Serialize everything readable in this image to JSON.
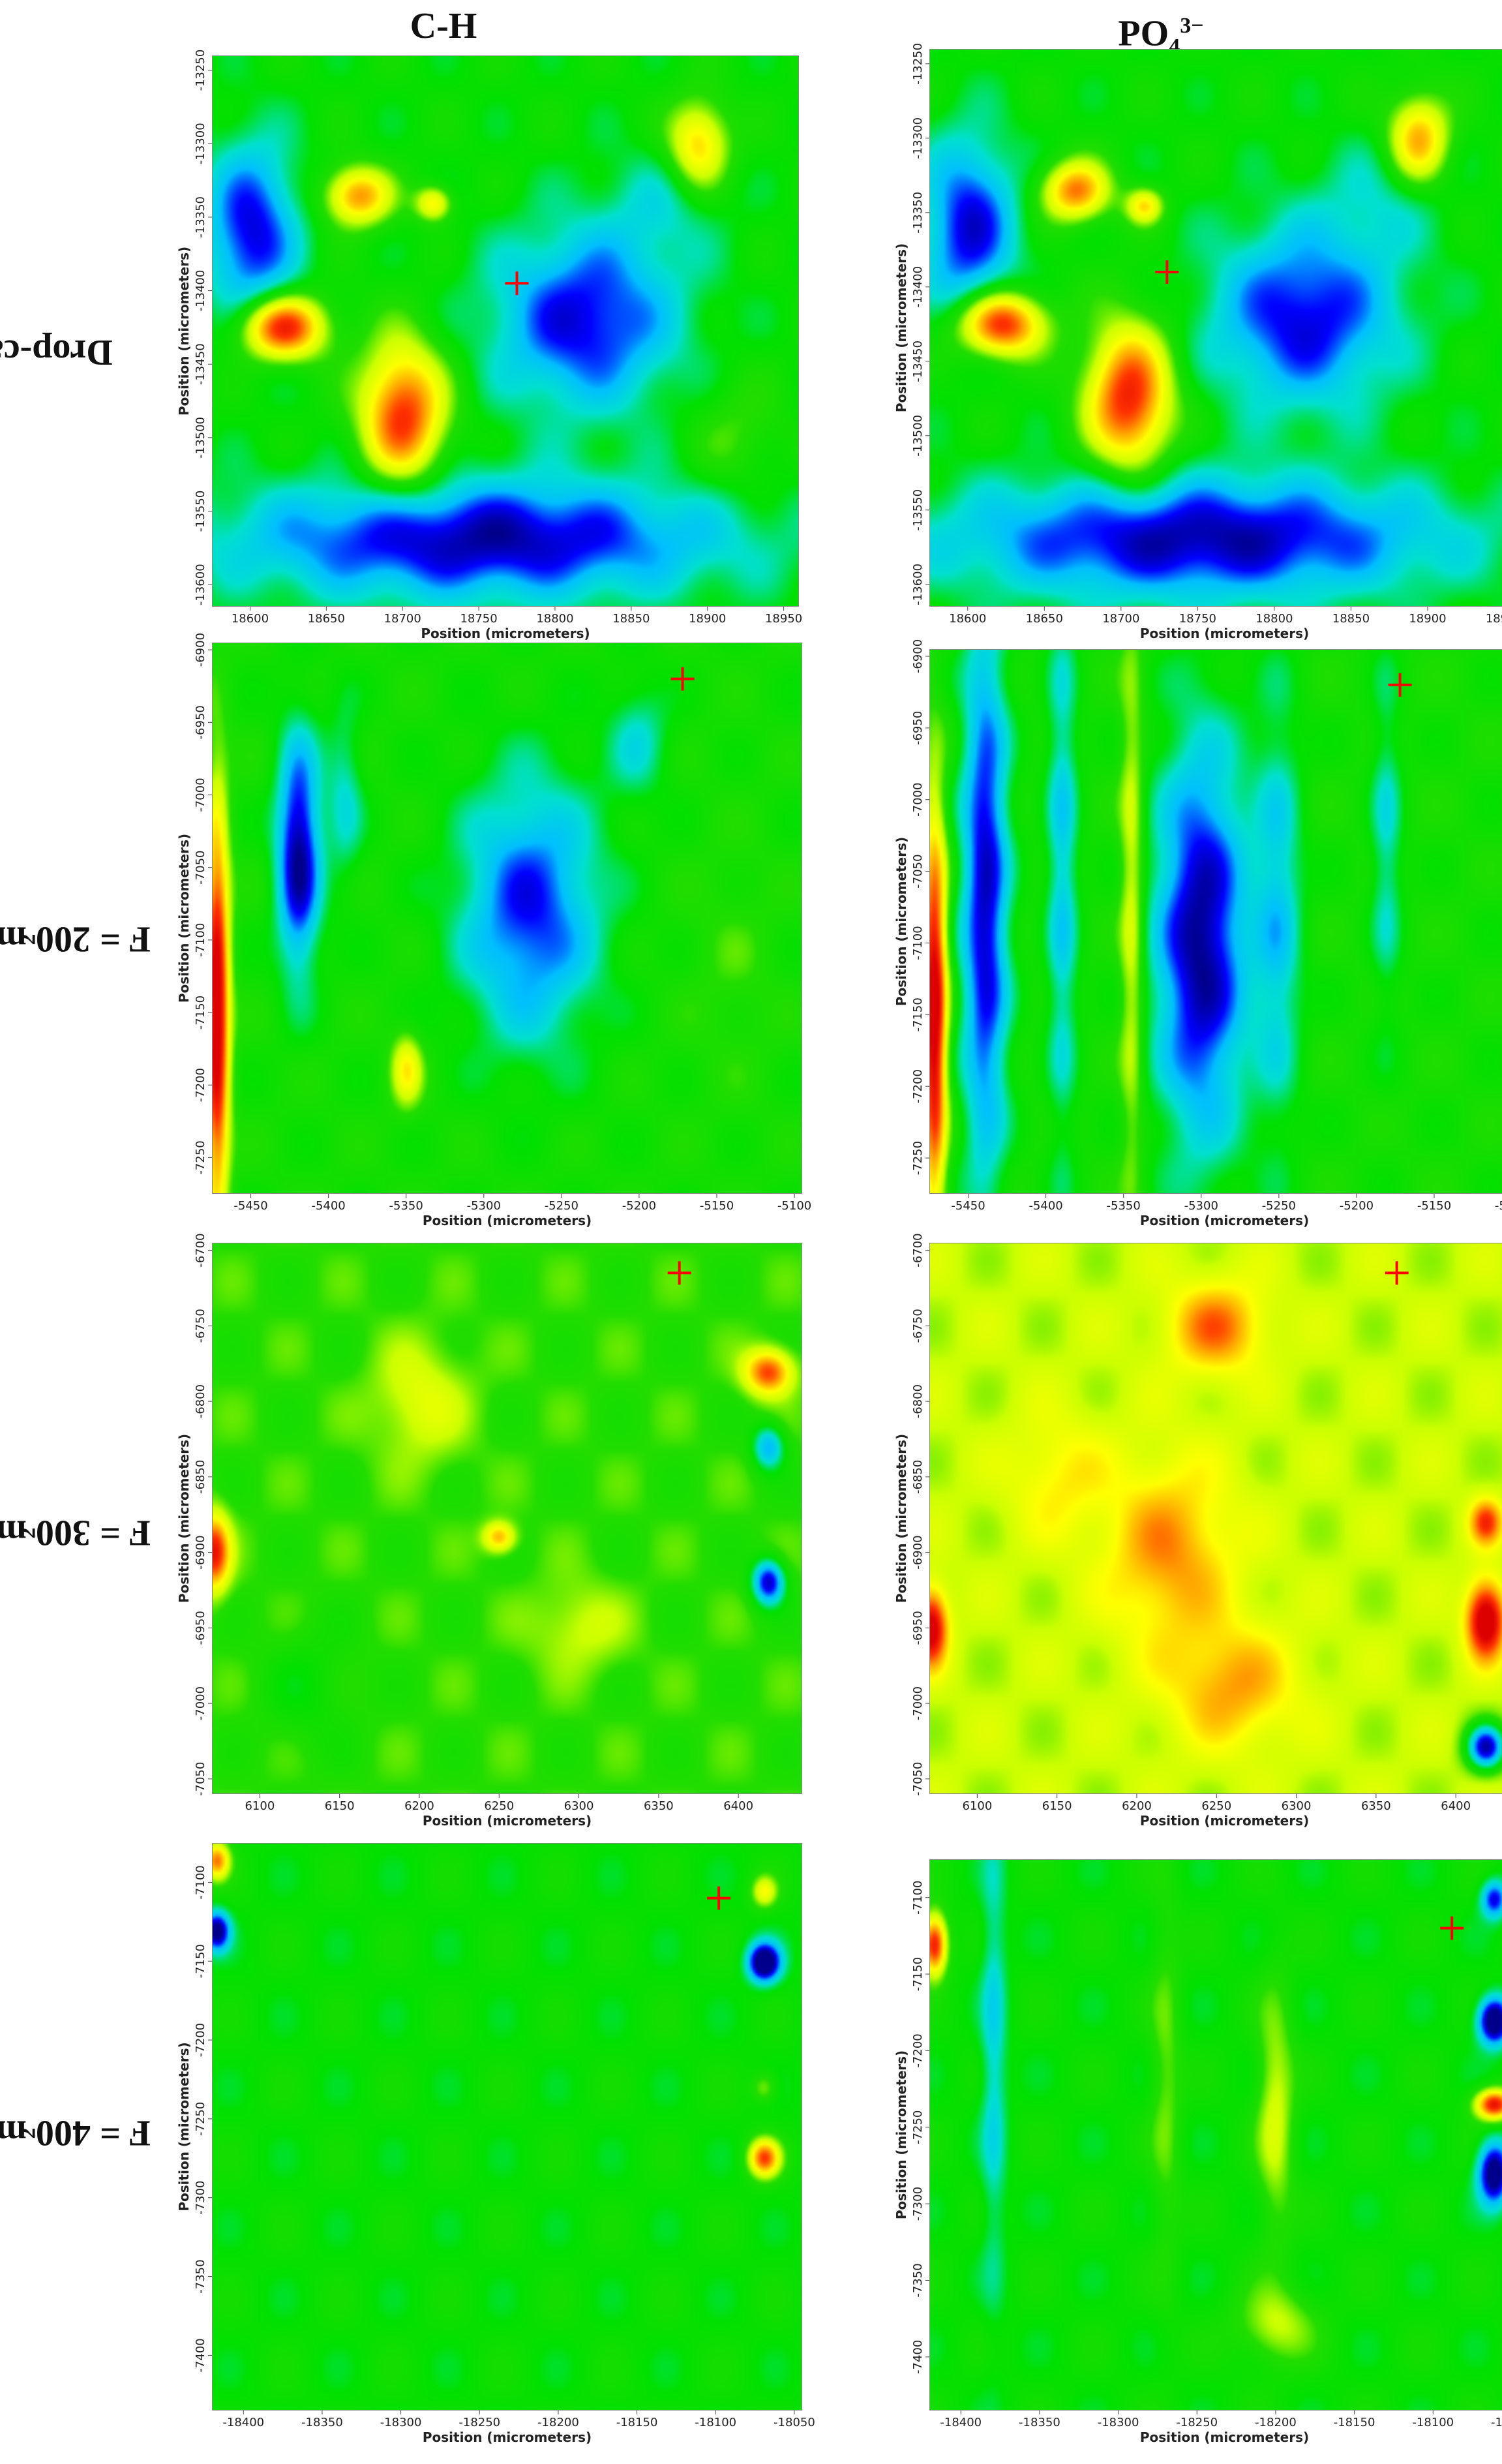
{
  "columns": [
    {
      "label": "C-H",
      "sup": "",
      "sub": ""
    },
    {
      "label": "PO",
      "sub": "4",
      "sup": "3−"
    }
  ],
  "rows": [
    {
      "label": "Drop-cast"
    },
    {
      "label_main": "F = 200 mJ/cm",
      "label_sup": "2"
    },
    {
      "label_main": "F = 300 mJ/cm",
      "label_sup": "2"
    },
    {
      "label_main": "F = 400 mJ/cm",
      "label_sup": "2"
    }
  ],
  "colors": {
    "colormap": [
      "#00008b",
      "#0000ff",
      "#00bfff",
      "#00e0d0",
      "#00e000",
      "#22dd00",
      "#ccff00",
      "#ffff00",
      "#ffa500",
      "#ff3300",
      "#dd0000"
    ],
    "marker": "#ff0000"
  },
  "chart_data": [
    {
      "type": "heatmap",
      "row": "Drop-cast",
      "column": "C-H",
      "xlabel": "Position (micrometers)",
      "ylabel": "Position (micrometers)",
      "xlim": [
        18575,
        18960
      ],
      "ylim": [
        -13615,
        -13240
      ],
      "xticks": [
        "18600",
        "18650",
        "18700",
        "18750",
        "18800",
        "18850",
        "18900",
        "18950"
      ],
      "yticks": [
        "-13250",
        "-13300",
        "-13350",
        "-13400",
        "-13450",
        "-13500",
        "-13550",
        "-13600"
      ],
      "background": 0.42,
      "marker": [
        18775,
        -13395
      ],
      "blobs": [
        [
          18620,
          -13425,
          28,
          22,
          0.55
        ],
        [
          18700,
          -13485,
          28,
          50,
          0.5
        ],
        [
          18670,
          -13335,
          22,
          20,
          0.4
        ],
        [
          18720,
          -13340,
          12,
          12,
          0.3
        ],
        [
          18895,
          -13300,
          20,
          30,
          0.35
        ],
        [
          18750,
          -13570,
          160,
          40,
          -0.4
        ],
        [
          18600,
          -13360,
          30,
          60,
          -0.35
        ],
        [
          18820,
          -13420,
          60,
          60,
          -0.35
        ],
        [
          18920,
          -13500,
          30,
          40,
          0.1
        ],
        [
          18870,
          -13340,
          40,
          40,
          -0.1
        ]
      ]
    },
    {
      "type": "heatmap",
      "row": "Drop-cast",
      "column": "PO4 3-",
      "xlabel": "Position (micrometers)",
      "ylabel": "Position (micrometers)",
      "xlim": [
        18575,
        18960
      ],
      "ylim": [
        -13615,
        -13240
      ],
      "xticks": [
        "18600",
        "18650",
        "18700",
        "18750",
        "18800",
        "18850",
        "18900",
        "18950"
      ],
      "yticks": [
        "-13250",
        "-13300",
        "-13350",
        "-13400",
        "-13450",
        "-13500",
        "-13550",
        "-13600"
      ],
      "background": 0.42,
      "marker": [
        18730,
        -13390
      ],
      "blobs": [
        [
          18620,
          -13425,
          28,
          22,
          0.55
        ],
        [
          18705,
          -13475,
          28,
          50,
          0.52
        ],
        [
          18670,
          -13335,
          22,
          20,
          0.42
        ],
        [
          18715,
          -13345,
          12,
          12,
          0.3
        ],
        [
          18895,
          -13300,
          20,
          30,
          0.38
        ],
        [
          18750,
          -13570,
          160,
          40,
          -0.4
        ],
        [
          18600,
          -13360,
          30,
          60,
          -0.35
        ],
        [
          18820,
          -13420,
          60,
          60,
          -0.35
        ],
        [
          18870,
          -13340,
          40,
          40,
          -0.1
        ]
      ]
    },
    {
      "type": "heatmap",
      "row": "F = 200 mJ/cm2",
      "column": "C-H",
      "xlabel": "Position (micrometers)",
      "ylabel": "Position (micrometers)",
      "xlim": [
        -5475,
        -5095
      ],
      "ylim": [
        -7275,
        -6895
      ],
      "xticks": [
        "-5450",
        "-5400",
        "-5350",
        "-5300",
        "-5250",
        "-5200",
        "-5150",
        "-5100"
      ],
      "yticks": [
        "-6900",
        "-6950",
        "-7000",
        "-7050",
        "-7100",
        "-7150",
        "-7200",
        "-7250"
      ],
      "background": 0.45,
      "marker": [
        -5172,
        -6920
      ],
      "blobs": [
        [
          -5473,
          -7150,
          8,
          140,
          0.6
        ],
        [
          -5420,
          -7040,
          14,
          80,
          -0.45
        ],
        [
          -5270,
          -7080,
          45,
          90,
          -0.35
        ],
        [
          -5350,
          -7190,
          10,
          25,
          0.25
        ],
        [
          -5390,
          -7000,
          12,
          60,
          -0.15
        ],
        [
          -5200,
          -6960,
          20,
          40,
          -0.15
        ],
        [
          -5140,
          -7120,
          30,
          80,
          0.05
        ]
      ]
    },
    {
      "type": "heatmap",
      "row": "F = 200 mJ/cm2",
      "column": "PO4 3-",
      "xlabel": "Position (micrometers)",
      "ylabel": "Position (micrometers)",
      "xlim": [
        -5475,
        -5095
      ],
      "ylim": [
        -7275,
        -6895
      ],
      "xticks": [
        "-5450",
        "-5400",
        "-5350",
        "-5300",
        "-5250",
        "-5200",
        "-5150",
        "-5100"
      ],
      "yticks": [
        "-6900",
        "-6950",
        "-7000",
        "-7050",
        "-7100",
        "-7150",
        "-7200",
        "-7250"
      ],
      "background": 0.45,
      "marker": [
        -5172,
        -6920
      ],
      "blobs": [
        [
          -5473,
          -7150,
          8,
          140,
          0.6
        ],
        [
          -5440,
          -7070,
          15,
          200,
          -0.4
        ],
        [
          -5300,
          -7100,
          30,
          140,
          -0.45
        ],
        [
          -5345,
          -7080,
          8,
          200,
          0.2
        ],
        [
          -5390,
          -7050,
          10,
          200,
          -0.2
        ],
        [
          -5250,
          -7080,
          15,
          150,
          -0.2
        ],
        [
          -5180,
          -7030,
          10,
          120,
          -0.15
        ]
      ]
    },
    {
      "type": "heatmap",
      "row": "F = 300 mJ/cm2",
      "column": "C-H",
      "xlabel": "Position (micrometers)",
      "ylabel": "Position (micrometers)",
      "xlim": [
        6070,
        6440
      ],
      "ylim": [
        -7060,
        -6695
      ],
      "xticks": [
        "6100",
        "6150",
        "6200",
        "6250",
        "6300",
        "6350",
        "6400"
      ],
      "yticks": [
        "-6700",
        "-6750",
        "-6800",
        "-6850",
        "-6900",
        "-6950",
        "-7000",
        "-7050"
      ],
      "background": 0.5,
      "marker": [
        6363,
        -6715
      ],
      "blobs": [
        [
          6070,
          -6900,
          10,
          25,
          0.45
        ],
        [
          6420,
          -6780,
          15,
          15,
          0.4
        ],
        [
          6420,
          -6830,
          10,
          15,
          -0.3
        ],
        [
          6420,
          -6920,
          10,
          15,
          -0.45
        ],
        [
          6250,
          -6890,
          10,
          10,
          0.3
        ],
        [
          6200,
          -6800,
          30,
          40,
          0.15
        ],
        [
          6300,
          -6950,
          30,
          30,
          0.12
        ],
        [
          6130,
          -6990,
          30,
          40,
          -0.08
        ]
      ]
    },
    {
      "type": "heatmap",
      "row": "F = 300 mJ/cm2",
      "column": "PO4 3-",
      "xlabel": "Position (micrometers)",
      "ylabel": "Position (micrometers)",
      "xlim": [
        6070,
        6440
      ],
      "ylim": [
        -7060,
        -6695
      ],
      "xticks": [
        "6100",
        "6150",
        "6200",
        "6250",
        "6300",
        "6350",
        "6400"
      ],
      "yticks": [
        "-6700",
        "-6750",
        "-6800",
        "-6850",
        "-6900",
        "-6950",
        "-7000",
        "-7050"
      ],
      "background": 0.6,
      "marker": [
        6363,
        -6715
      ],
      "blobs": [
        [
          6070,
          -6950,
          10,
          25,
          0.45
        ],
        [
          6420,
          -6945,
          12,
          25,
          0.5
        ],
        [
          6420,
          -7030,
          12,
          15,
          -0.55
        ],
        [
          6420,
          -6880,
          10,
          15,
          0.3
        ],
        [
          6250,
          -6750,
          30,
          30,
          0.25
        ],
        [
          6220,
          -6900,
          40,
          60,
          0.22
        ],
        [
          6260,
          -6990,
          40,
          40,
          0.2
        ],
        [
          6150,
          -6850,
          30,
          40,
          0.12
        ]
      ]
    },
    {
      "type": "heatmap",
      "row": "F = 400 mJ/cm2",
      "column": "C-H",
      "xlabel": "Position (micrometers)",
      "ylabel": "Position (micrometers)",
      "xlim": [
        -18420,
        -18045
      ],
      "ylim": [
        -7435,
        -7075
      ],
      "xticks": [
        "-18400",
        "-18350",
        "-18300",
        "-18250",
        "-18200",
        "-18150",
        "-18100",
        "-18050"
      ],
      "yticks": [
        "-7100",
        "-7150",
        "-7200",
        "-7250",
        "-7300",
        "-7350",
        "-7400"
      ],
      "background": 0.42,
      "marker": [
        -18098,
        -7110
      ],
      "blobs": [
        [
          -18418,
          -7085,
          8,
          12,
          0.4
        ],
        [
          -18418,
          -7130,
          8,
          12,
          -0.45
        ],
        [
          -18068,
          -7150,
          10,
          12,
          -0.55
        ],
        [
          -18068,
          -7105,
          8,
          10,
          0.25
        ],
        [
          -18068,
          -7275,
          10,
          12,
          0.45
        ],
        [
          -18068,
          -7230,
          8,
          10,
          0.15
        ]
      ]
    },
    {
      "type": "heatmap",
      "row": "F = 400 mJ/cm2",
      "column": "PO4 3-",
      "xlabel": "Position (micrometers)",
      "ylabel": "Position (micrometers)",
      "xlim": [
        -18420,
        -18045
      ],
      "ylim": [
        -7435,
        -7075
      ],
      "xticks": [
        "-18400",
        "-18350",
        "-18300",
        "-18250",
        "-18200",
        "-18150",
        "-18100",
        "-18050"
      ],
      "yticks": [
        "-7100",
        "-7150",
        "-7200",
        "-7250",
        "-7300",
        "-7350",
        "-7400"
      ],
      "background": 0.42,
      "marker": [
        -18088,
        -7120
      ],
      "blobs": [
        [
          -18418,
          -7130,
          8,
          20,
          0.55
        ],
        [
          -18060,
          -7180,
          10,
          15,
          -0.55
        ],
        [
          -18060,
          -7280,
          10,
          20,
          -0.5
        ],
        [
          -18060,
          -7235,
          12,
          10,
          0.55
        ],
        [
          -18060,
          -7100,
          8,
          12,
          -0.35
        ],
        [
          -18200,
          -7240,
          12,
          80,
          0.2
        ],
        [
          -18270,
          -7220,
          10,
          120,
          0.12
        ],
        [
          -18200,
          -7380,
          25,
          25,
          0.18
        ],
        [
          -18380,
          -7200,
          8,
          150,
          -0.15
        ]
      ]
    }
  ]
}
